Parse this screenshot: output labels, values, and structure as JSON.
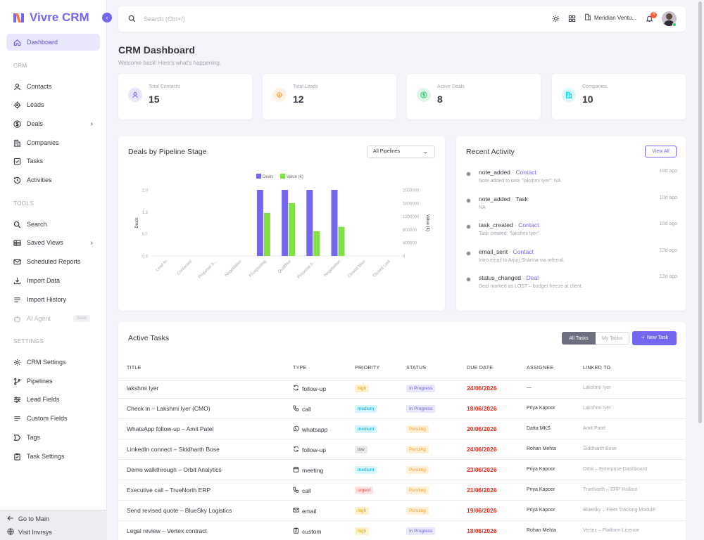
{
  "app": {
    "name": "Vivre CRM",
    "collapse": "‹"
  },
  "sidebar": {
    "dashboard": "Dashboard",
    "sections": {
      "crm": "CRM",
      "tools": "TOOLS",
      "settings": "SETTINGS"
    },
    "crm_items": [
      "Contacts",
      "Leads",
      "Deals",
      "Companies",
      "Tasks",
      "Activities"
    ],
    "tools_items": [
      "Search",
      "Saved Views",
      "Scheduled Reports",
      "Import Data",
      "Import History",
      "AI Agent"
    ],
    "ai_badge": "Soon",
    "settings_items": [
      "CRM Settings",
      "Pipelines",
      "Lead Fields",
      "Custom Fields",
      "Tags",
      "Task Settings"
    ],
    "footer": {
      "go_main": "Go to Main",
      "visit": "Visit Invrsys"
    }
  },
  "topbar": {
    "search_placeholder": "Search (Ctrl+/)",
    "workspace": "Meridian Ventu...",
    "notifications": "4"
  },
  "page": {
    "title": "CRM Dashboard",
    "subtitle": "Welcome back! Here's what's happening."
  },
  "stats": [
    {
      "label": "Total Contacts",
      "value": "15",
      "color": "#7367f0",
      "bg": "#e8e7fd"
    },
    {
      "label": "Total Leads",
      "value": "12",
      "color": "#ff9f43",
      "bg": "#fff1e3"
    },
    {
      "label": "Active Deals",
      "value": "8",
      "color": "#28c76f",
      "bg": "#dff7e9"
    },
    {
      "label": "Companies",
      "value": "10",
      "color": "#00cfe8",
      "bg": "#d9f8fc"
    }
  ],
  "pipeline_card": {
    "title": "Deals by Pipeline Stage",
    "filter": "All Pipelines"
  },
  "chart_data": {
    "type": "bar",
    "categories": [
      "Lead In",
      "Contacted",
      "Proposal S...",
      "Negotiation",
      "Prospecting",
      "Qualified",
      "Proposal S...",
      "Negotiation",
      "Closed Won",
      "Closed Lost"
    ],
    "series": [
      {
        "name": "Deals",
        "axis": "left",
        "color": "#7367f0",
        "values": [
          0,
          0,
          0,
          0,
          2,
          2,
          2,
          2,
          0,
          0
        ]
      },
      {
        "name": "Value (€)",
        "axis": "right",
        "color": "#80e044",
        "values": [
          0,
          0,
          0,
          0,
          1300000,
          1600000,
          750000,
          880000,
          0,
          0
        ]
      }
    ],
    "ylabel": "Deals",
    "y2label": "Value (€)",
    "yticks": [
      "2.0",
      "1.3",
      "0.7",
      "0.0"
    ],
    "y2ticks": [
      "2000000",
      "1600000",
      "1200000",
      "800000",
      "400000",
      "0"
    ],
    "ylim": [
      0,
      2
    ],
    "y2lim": [
      0,
      2000000
    ],
    "legend": "top"
  },
  "activity": {
    "title": "Recent Activity",
    "view_all": "View All",
    "items": [
      {
        "type": "note_added",
        "entity": "Contact",
        "link": true,
        "desc": "Note added to task \"lakshmi Iyer\": NA",
        "time": "10d ago"
      },
      {
        "type": "note_added",
        "entity": "Task",
        "link": false,
        "desc": "NA",
        "time": "10d ago"
      },
      {
        "type": "task_created",
        "entity": "Contact",
        "link": true,
        "desc": "Task created: \"lakshmi Iyer\".",
        "time": "10d ago"
      },
      {
        "type": "email_sent",
        "entity": "Contact",
        "link": true,
        "desc": "Intro email to Arjun Sharma via referral.",
        "time": "12d ago"
      },
      {
        "type": "status_changed",
        "entity": "Deal",
        "link": true,
        "desc": "Deal marked as LOST – budget freeze at client.",
        "time": "12d ago"
      }
    ]
  },
  "tasks": {
    "title": "Active Tasks",
    "toggle_all": "All Tasks",
    "toggle_mine": "My Tasks",
    "new_task": "New Task",
    "headers": [
      "TITLE",
      "TYPE",
      "PRIORITY",
      "STATUS",
      "DUE DATE",
      "ASSIGNEE",
      "LINKED TO"
    ],
    "rows": [
      {
        "title": "lakshmi Iyer",
        "type": "follow-up",
        "icon": "refresh-icon",
        "priority": "high",
        "status": "In Progress",
        "due": "24/06/2026",
        "assignee": "—",
        "linked": "Lakshmi Iyer"
      },
      {
        "title": "Check in – Lakshmi Iyer (CMO)",
        "type": "call",
        "icon": "phone-icon",
        "priority": "medium",
        "status": "In Progress",
        "due": "18/06/2026",
        "assignee": "Priya Kapoor",
        "linked": "Lakshmi Iyer"
      },
      {
        "title": "WhatsApp follow-up – Amit Patel",
        "type": "whatsapp",
        "icon": "whatsapp-icon",
        "priority": "medium",
        "status": "Pending",
        "due": "20/06/2026",
        "assignee": "Datta MKS",
        "linked": "Amit Patel"
      },
      {
        "title": "LinkedIn connect – Siddharth Bose",
        "type": "follow-up",
        "icon": "refresh-icon",
        "priority": "low",
        "status": "Pending",
        "due": "24/06/2026",
        "assignee": "Rohan Mehta",
        "linked": "Siddharth Bose"
      },
      {
        "title": "Demo walkthrough – Orbit Analytics",
        "type": "meeting",
        "icon": "calendar-icon",
        "priority": "medium",
        "status": "Pending",
        "due": "23/06/2026",
        "assignee": "Priya Kapoor",
        "linked": "Orbit – Enterprise Dashboard"
      },
      {
        "title": "Executive call – TrueNorth ERP",
        "type": "call",
        "icon": "phone-icon",
        "priority": "urgent",
        "status": "Pending",
        "due": "21/06/2026",
        "assignee": "Priya Kapoor",
        "linked": "TrueNorth – ERP Rollout"
      },
      {
        "title": "Send revised quote – BlueSky Logistics",
        "type": "email",
        "icon": "mail-icon",
        "priority": "high",
        "status": "Pending",
        "due": "19/06/2026",
        "assignee": "Priya Kapoor",
        "linked": "BlueSky – Fleet Tracking Module"
      },
      {
        "title": "Legal review – Vertex contract",
        "type": "custom",
        "icon": "clipboard-icon",
        "priority": "high",
        "status": "In Progress",
        "due": "18/06/2026",
        "assignee": "Rohan Mehta",
        "linked": "Vertex – Platform Licence"
      }
    ]
  }
}
